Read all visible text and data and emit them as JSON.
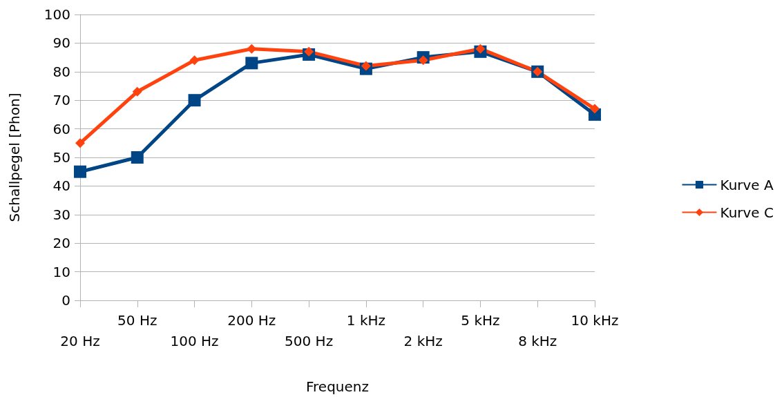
{
  "chart_data": {
    "type": "line",
    "xlabel": "Frequenz",
    "ylabel": "Schallpegel [Phon]",
    "categories": [
      "20 Hz",
      "50 Hz",
      "100 Hz",
      "200 Hz",
      "500 Hz",
      "1 kHz",
      "2 kHz",
      "5 kHz",
      "8 kHz",
      "10 kHz"
    ],
    "series": [
      {
        "name": "Kurve A",
        "color": "#004586",
        "marker": "square",
        "values": [
          45,
          50,
          70,
          83,
          86,
          81,
          85,
          87,
          80,
          65
        ]
      },
      {
        "name": "Kurve C",
        "color": "#ff420e",
        "marker": "diamond",
        "values": [
          55,
          73,
          84,
          88,
          87,
          82,
          84,
          88,
          80,
          67
        ]
      }
    ],
    "ylim": [
      0,
      100
    ],
    "yticks": [
      0,
      10,
      20,
      30,
      40,
      50,
      60,
      70,
      80,
      90,
      100
    ],
    "grid": "y",
    "legend": "right"
  }
}
